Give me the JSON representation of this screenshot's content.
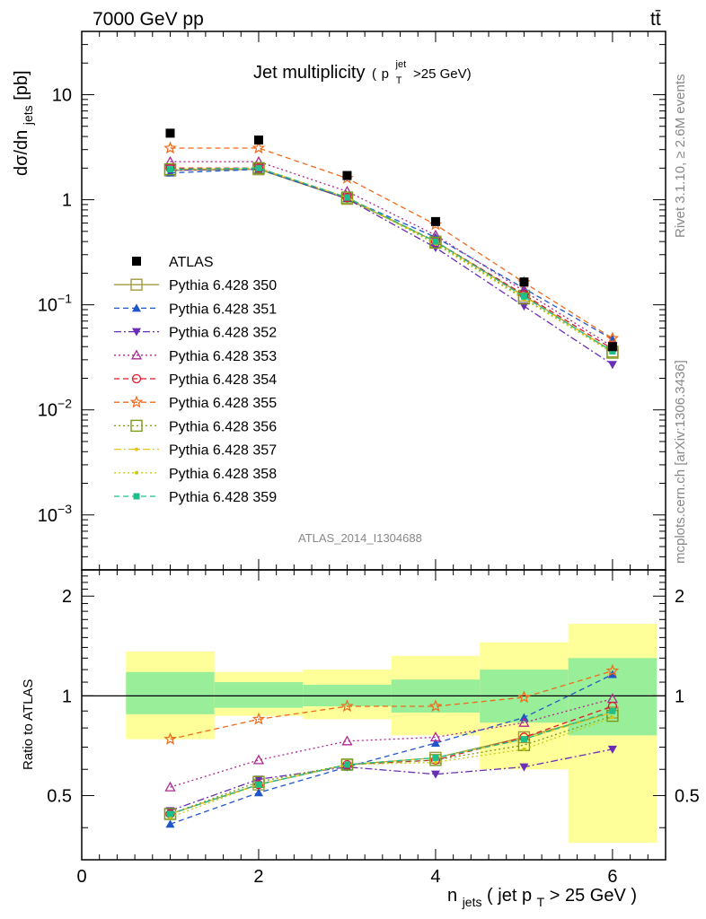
{
  "header": {
    "left": "7000 GeV pp",
    "right": "tt̄"
  },
  "main": {
    "title": "Jet multiplicity",
    "title_sub_p": "p",
    "title_sub_sup": "jet",
    "title_sub_T": "T",
    "title_sub_tail": ">25 GeV)",
    "title_sub_open": "(",
    "ylabel": "dσ/dn",
    "ylabel_sub": "jets",
    "ylabel_tail": " [pb]",
    "analysis_id": "ATLAS_2014_I1304688"
  },
  "side": {
    "rivet": "Rivet 3.1.10, ≥ 2.6M events",
    "mcplots": "mcplots.cern.ch [arXiv:1306.3436]"
  },
  "ratio": {
    "ylabel": "Ratio to ATLAS"
  },
  "xaxis": {
    "label_n": "n",
    "label_sub": "jets",
    "label_mid": " ( jet p",
    "label_sub2": "T",
    "label_tail": " > 25 GeV )"
  },
  "chart_data": [
    {
      "type": "scatter",
      "panel": "main",
      "yscale": "log",
      "xlim": [
        0,
        6.6
      ],
      "ylim": [
        0.0003,
        40
      ],
      "x": [
        1,
        2,
        3,
        4,
        5,
        6
      ],
      "yticks": [
        "10⁻³",
        "10⁻²",
        "10⁻¹",
        "1",
        "10"
      ],
      "xticks": [
        "0",
        "2",
        "4",
        "6"
      ],
      "legend_position": "left-middle",
      "series": [
        {
          "name": "ATLAS",
          "color": "#000000",
          "marker": "square-filled",
          "dash": "none",
          "values": [
            4.3,
            3.7,
            1.7,
            0.62,
            0.165,
            0.04
          ]
        },
        {
          "name": "Pythia 6.428 350",
          "color": "#a09a3c",
          "marker": "square-open",
          "dash": "solid",
          "values": [
            1.9,
            1.95,
            1.02,
            0.4,
            0.122,
            0.036
          ]
        },
        {
          "name": "Pythia 6.428 351",
          "color": "#1f56c8",
          "marker": "triangle-up-filled",
          "dash": "dashed",
          "values": [
            1.8,
            1.95,
            1.03,
            0.44,
            0.143,
            0.047
          ]
        },
        {
          "name": "Pythia 6.428 352",
          "color": "#6a2db5",
          "marker": "triangle-down-filled",
          "dash": "dashdot",
          "values": [
            1.9,
            2.0,
            1.02,
            0.35,
            0.097,
            0.027
          ]
        },
        {
          "name": "Pythia 6.428 353",
          "color": "#b0288f",
          "marker": "triangle-up-open",
          "dash": "dotted",
          "values": [
            2.3,
            2.3,
            1.2,
            0.46,
            0.135,
            0.04
          ]
        },
        {
          "name": "Pythia 6.428 354",
          "color": "#e0182a",
          "marker": "circle-open",
          "dash": "dashed",
          "values": [
            2.0,
            2.0,
            1.05,
            0.4,
            0.125,
            0.038
          ]
        },
        {
          "name": "Pythia 6.428 355",
          "color": "#ef6a1b",
          "marker": "star-open",
          "dash": "dashed",
          "values": [
            3.1,
            3.1,
            1.6,
            0.58,
            0.163,
            0.048
          ]
        },
        {
          "name": "Pythia 6.428 356",
          "color": "#7a9a17",
          "marker": "square-open",
          "dash": "dotted",
          "values": [
            1.95,
            2.0,
            1.05,
            0.39,
            0.115,
            0.035
          ]
        },
        {
          "name": "Pythia 6.428 357",
          "color": "#e6c41e",
          "marker": "dot",
          "dash": "dashdot",
          "values": [
            1.95,
            2.0,
            1.05,
            0.4,
            0.12,
            0.036
          ]
        },
        {
          "name": "Pythia 6.428 358",
          "color": "#c8cc12",
          "marker": "dot",
          "dash": "dotted",
          "values": [
            1.95,
            2.0,
            1.05,
            0.38,
            0.113,
            0.035
          ]
        },
        {
          "name": "Pythia 6.428 359",
          "color": "#1fbf8a",
          "marker": "square-filled-small",
          "dash": "dashed",
          "values": [
            1.95,
            2.0,
            1.05,
            0.4,
            0.12,
            0.036
          ]
        }
      ]
    },
    {
      "type": "scatter",
      "panel": "ratio",
      "xlim": [
        0,
        6.6
      ],
      "ylim": [
        0.32,
        2.4
      ],
      "yscale": "log",
      "yticks": [
        "0.5",
        "1",
        "2"
      ],
      "x": [
        1,
        2,
        3,
        4,
        5,
        6
      ],
      "bands": {
        "x_edges": [
          0.5,
          1.5,
          2.5,
          3.5,
          4.5,
          5.5,
          6.5
        ],
        "inner": [
          [
            0.88,
            1.18
          ],
          [
            0.92,
            1.1
          ],
          [
            0.93,
            1.08
          ],
          [
            0.89,
            1.12
          ],
          [
            0.83,
            1.2
          ],
          [
            0.76,
            1.3
          ]
        ],
        "outer": [
          [
            0.74,
            1.36
          ],
          [
            0.87,
            1.18
          ],
          [
            0.85,
            1.2
          ],
          [
            0.76,
            1.32
          ],
          [
            0.6,
            1.45
          ],
          [
            0.36,
            1.65
          ]
        ],
        "inner_color": "#99ee99",
        "outer_color": "#ffff99"
      },
      "reference": 1,
      "series": [
        {
          "name": "Pythia 6.428 350",
          "values": [
            0.44,
            0.54,
            0.62,
            0.65,
            0.75,
            0.89
          ]
        },
        {
          "name": "Pythia 6.428 351",
          "values": [
            0.41,
            0.51,
            0.61,
            0.72,
            0.86,
            1.16
          ]
        },
        {
          "name": "Pythia 6.428 352",
          "values": [
            0.45,
            0.56,
            0.61,
            0.58,
            0.61,
            0.69
          ]
        },
        {
          "name": "Pythia 6.428 353",
          "values": [
            0.53,
            0.64,
            0.73,
            0.75,
            0.83,
            0.98
          ]
        },
        {
          "name": "Pythia 6.428 354",
          "values": [
            0.44,
            0.54,
            0.62,
            0.64,
            0.75,
            0.93
          ]
        },
        {
          "name": "Pythia 6.428 355",
          "values": [
            0.74,
            0.85,
            0.93,
            0.93,
            0.99,
            1.19
          ]
        },
        {
          "name": "Pythia 6.428 356",
          "values": [
            0.44,
            0.55,
            0.62,
            0.64,
            0.71,
            0.87
          ]
        },
        {
          "name": "Pythia 6.428 357",
          "values": [
            0.44,
            0.54,
            0.62,
            0.65,
            0.74,
            0.89
          ]
        },
        {
          "name": "Pythia 6.428 358",
          "values": [
            0.43,
            0.54,
            0.62,
            0.63,
            0.69,
            0.86
          ]
        },
        {
          "name": "Pythia 6.428 359",
          "values": [
            0.44,
            0.54,
            0.62,
            0.65,
            0.74,
            0.9
          ]
        }
      ]
    }
  ]
}
